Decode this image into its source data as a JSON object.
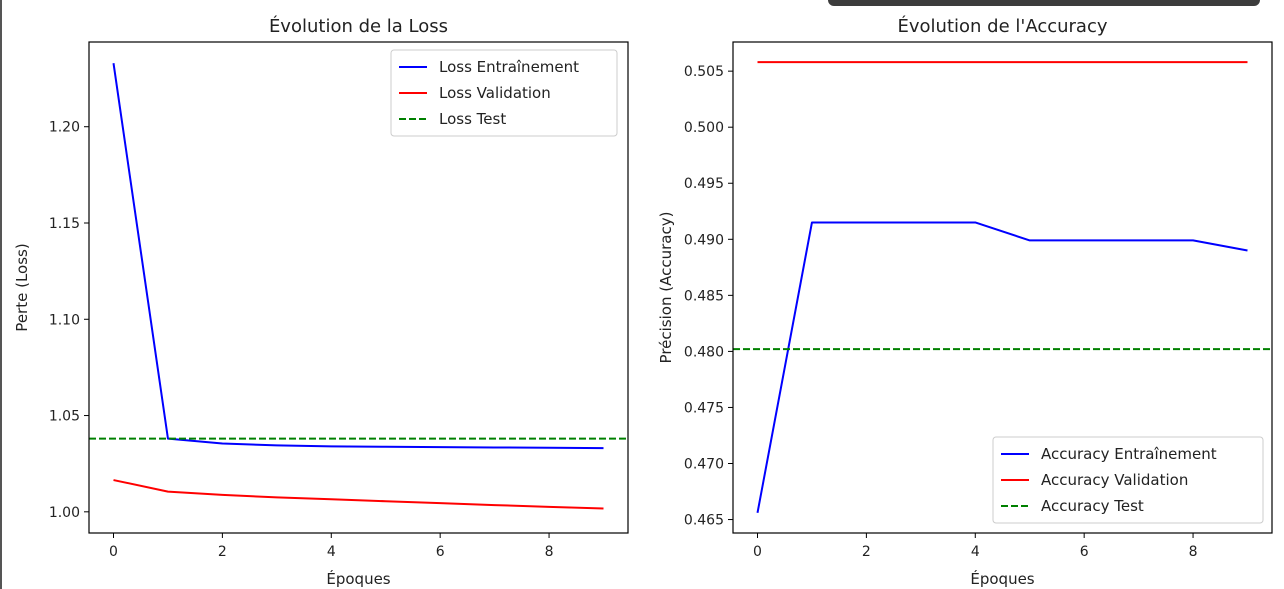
{
  "chart_data": [
    {
      "type": "line",
      "title": "Évolution de la Loss",
      "xlabel": "Époques",
      "ylabel": "Perte (Loss)",
      "xlim": [
        -0.45,
        9.45
      ],
      "ylim": [
        0.989,
        1.244
      ],
      "xticks": [
        0,
        2,
        4,
        6,
        8
      ],
      "yticks": [
        1.0,
        1.05,
        1.1,
        1.15,
        1.2
      ],
      "ytick_labels": [
        "1.00",
        "1.05",
        "1.10",
        "1.15",
        "1.20"
      ],
      "grid": false,
      "legend_position": "upper right",
      "x": [
        0,
        1,
        2,
        3,
        4,
        5,
        6,
        7,
        8,
        9
      ],
      "series": [
        {
          "name": "Loss Entraînement",
          "color": "#0000ff",
          "style": "solid",
          "values": [
            1.233,
            1.038,
            1.0355,
            1.0345,
            1.034,
            1.0338,
            1.0336,
            1.0334,
            1.0333,
            1.0331
          ]
        },
        {
          "name": "Loss Validation",
          "color": "#ff0000",
          "style": "solid",
          "values": [
            1.0165,
            1.0105,
            1.0088,
            1.0075,
            1.0065,
            1.0055,
            1.0045,
            1.0035,
            1.0026,
            1.0017
          ]
        },
        {
          "name": "Loss Test",
          "color": "#008000",
          "style": "dashed",
          "hline": 1.038
        }
      ]
    },
    {
      "type": "line",
      "title": "Évolution de l'Accuracy",
      "xlabel": "Époques",
      "ylabel": "Précision (Accuracy)",
      "xlim": [
        -0.45,
        9.45
      ],
      "ylim": [
        0.4638,
        0.5076
      ],
      "xticks": [
        0,
        2,
        4,
        6,
        8
      ],
      "yticks": [
        0.465,
        0.47,
        0.475,
        0.48,
        0.485,
        0.49,
        0.495,
        0.5,
        0.505
      ],
      "ytick_labels": [
        "0.465",
        "0.470",
        "0.475",
        "0.480",
        "0.485",
        "0.490",
        "0.495",
        "0.500",
        "0.505"
      ],
      "grid": false,
      "legend_position": "lower right",
      "x": [
        0,
        1,
        2,
        3,
        4,
        5,
        6,
        7,
        8,
        9
      ],
      "series": [
        {
          "name": "Accuracy Entraînement",
          "color": "#0000ff",
          "style": "solid",
          "values": [
            0.4656,
            0.4915,
            0.4915,
            0.4915,
            0.4915,
            0.4899,
            0.4899,
            0.4899,
            0.4899,
            0.489
          ]
        },
        {
          "name": "Accuracy Validation",
          "color": "#ff0000",
          "style": "solid",
          "values": [
            0.5058,
            0.5058,
            0.5058,
            0.5058,
            0.5058,
            0.5058,
            0.5058,
            0.5058,
            0.5058,
            0.5058
          ]
        },
        {
          "name": "Accuracy Test",
          "color": "#008000",
          "style": "dashed",
          "hline": 0.4802
        }
      ]
    }
  ]
}
